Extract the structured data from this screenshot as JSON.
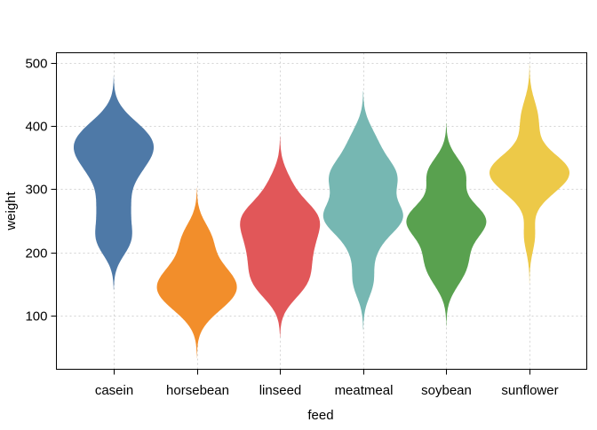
{
  "chart_data": {
    "type": "violin",
    "title": "",
    "xlabel": "feed",
    "ylabel": "weight",
    "ylim": [
      16,
      514
    ],
    "yticks": [
      100,
      200,
      300,
      400,
      500
    ],
    "grid": true,
    "bandwidth": 25,
    "categories": [
      "casein",
      "horsebean",
      "linseed",
      "meatmeal",
      "soybean",
      "sunflower"
    ],
    "colors": [
      "#4e79a7",
      "#f28e2b",
      "#e15759",
      "#76b7b2",
      "#59a14f",
      "#edc948"
    ],
    "series": [
      {
        "name": "casein",
        "values": [
          368,
          390,
          379,
          260,
          404,
          318,
          352,
          359,
          216,
          222,
          283,
          332
        ]
      },
      {
        "name": "horsebean",
        "values": [
          179,
          160,
          136,
          227,
          217,
          168,
          108,
          124,
          143,
          140
        ]
      },
      {
        "name": "linseed",
        "values": [
          309,
          229,
          181,
          141,
          260,
          203,
          148,
          169,
          213,
          257,
          244,
          271
        ]
      },
      {
        "name": "meatmeal",
        "values": [
          325,
          257,
          303,
          315,
          380,
          153,
          263,
          242,
          206,
          344,
          258
        ]
      },
      {
        "name": "soybean",
        "values": [
          243,
          230,
          248,
          327,
          329,
          250,
          193,
          271,
          316,
          267,
          199,
          171,
          158,
          248
        ]
      },
      {
        "name": "sunflower",
        "values": [
          423,
          340,
          392,
          339,
          341,
          226,
          320,
          295,
          334,
          322,
          297,
          318
        ]
      }
    ]
  }
}
